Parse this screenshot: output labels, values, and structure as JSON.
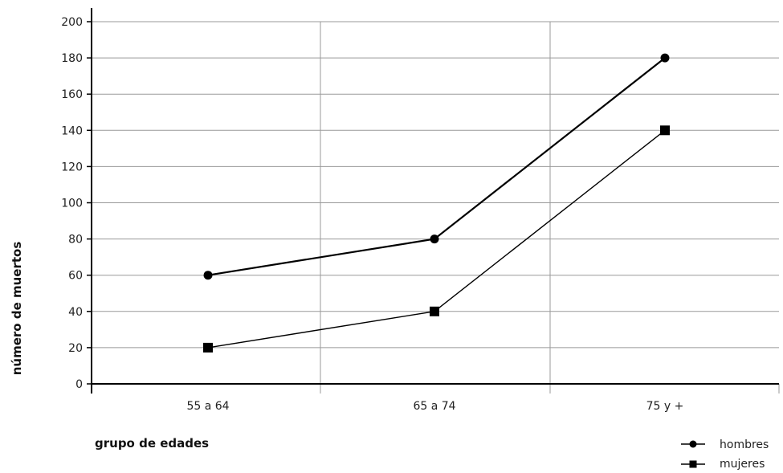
{
  "chart_data": {
    "type": "line",
    "categories": [
      "55 a 64",
      "65 a 74",
      "75 y +"
    ],
    "series": [
      {
        "name": "hombres",
        "marker": "circle",
        "values": [
          60,
          80,
          180
        ]
      },
      {
        "name": "mujeres",
        "marker": "square",
        "values": [
          20,
          40,
          140
        ]
      }
    ],
    "title": "",
    "xlabel": "grupo de edades",
    "ylabel": "número de muertos",
    "ylim": [
      0,
      200
    ],
    "yticks": [
      0,
      20,
      40,
      60,
      80,
      100,
      120,
      140,
      160,
      180,
      200
    ],
    "grid": true,
    "legend_position": "bottom-right",
    "colors": {
      "line": "#000000",
      "grid": "#999999"
    }
  }
}
